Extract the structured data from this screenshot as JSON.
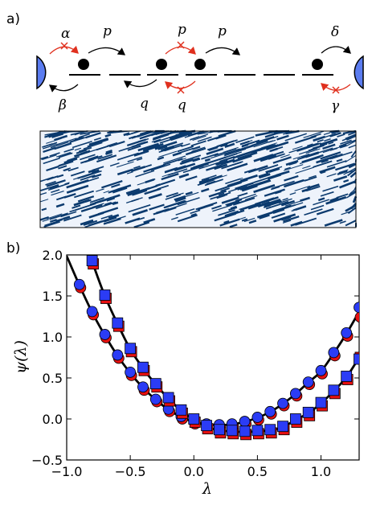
{
  "panels": {
    "a_label": "a)",
    "b_label": "b)"
  },
  "schematic": {
    "rates": {
      "alpha": "α",
      "beta": "β",
      "p_left": "p",
      "q_left": "q",
      "p_mid": "p",
      "q_mid": "q",
      "p_right": "p",
      "delta": "δ",
      "gamma": "γ"
    },
    "colors": {
      "reservoir": "#5b7cf0",
      "particle": "#000000",
      "blocked_arrow": "#e0301e",
      "arrow": "#000000"
    }
  },
  "kymograph": {
    "colors": {
      "occupied": "#0b3a6e",
      "empty": "#ffffff",
      "fill_tint": "#eef3fb"
    }
  },
  "chart_data": {
    "type": "scatter",
    "title": "",
    "xlabel": "λ",
    "ylabel": "ψ(λ)",
    "xlim": [
      -1.0,
      1.3
    ],
    "ylim": [
      -0.5,
      2.0
    ],
    "xticks": [
      "−1.0",
      "−0.5",
      "0.0",
      "0.5",
      "1.0"
    ],
    "xtick_values": [
      -1.0,
      -0.5,
      0.0,
      0.5,
      1.0
    ],
    "yticks": [
      "−0.5",
      "0.0",
      "0.5",
      "1.0",
      "1.5",
      "2.0"
    ],
    "ytick_values": [
      -0.5,
      0.0,
      0.5,
      1.0,
      1.5,
      2.0
    ],
    "grid": false,
    "curves": [
      {
        "marker": "circle",
        "x": [
          -0.9,
          -0.8,
          -0.7,
          -0.6,
          -0.5,
          -0.4,
          -0.3,
          -0.2,
          -0.1,
          0.0,
          0.1,
          0.2,
          0.3,
          0.4,
          0.5,
          0.6,
          0.7,
          0.8,
          0.9,
          1.0,
          1.1,
          1.2,
          1.3
        ],
        "blue": [
          1.64,
          1.31,
          1.03,
          0.78,
          0.57,
          0.39,
          0.24,
          0.12,
          0.03,
          -0.03,
          -0.06,
          -0.07,
          -0.06,
          -0.03,
          0.02,
          0.09,
          0.19,
          0.31,
          0.45,
          0.59,
          0.81,
          1.05,
          1.36
        ],
        "red": [
          1.62,
          1.29,
          1.01,
          0.76,
          0.55,
          0.37,
          0.23,
          0.11,
          0.02,
          -0.04,
          -0.07,
          -0.08,
          -0.07,
          -0.04,
          0.01,
          0.08,
          0.18,
          0.3,
          0.44,
          0.57,
          0.79,
          1.03,
          1.26
        ]
      },
      {
        "marker": "square",
        "x": [
          -0.8,
          -0.7,
          -0.6,
          -0.5,
          -0.4,
          -0.3,
          -0.2,
          -0.1,
          0.0,
          0.1,
          0.2,
          0.3,
          0.4,
          0.5,
          0.6,
          0.7,
          0.8,
          0.9,
          1.0,
          1.1,
          1.2,
          1.3
        ],
        "blue": [
          1.93,
          1.51,
          1.17,
          0.86,
          0.63,
          0.43,
          0.26,
          0.11,
          0.0,
          -0.08,
          -0.13,
          -0.14,
          -0.15,
          -0.14,
          -0.13,
          -0.09,
          0.0,
          0.08,
          0.2,
          0.35,
          0.52,
          0.73
        ],
        "red": [
          1.91,
          1.49,
          1.15,
          0.84,
          0.61,
          0.41,
          0.24,
          0.09,
          -0.02,
          -0.1,
          -0.15,
          -0.16,
          -0.17,
          -0.16,
          -0.15,
          -0.11,
          -0.02,
          0.06,
          0.18,
          0.33,
          0.5,
          0.77
        ]
      }
    ],
    "colors": {
      "marker_blue": "#2b3cf5",
      "marker_red": "#e81010",
      "curve": "#000000"
    }
  }
}
